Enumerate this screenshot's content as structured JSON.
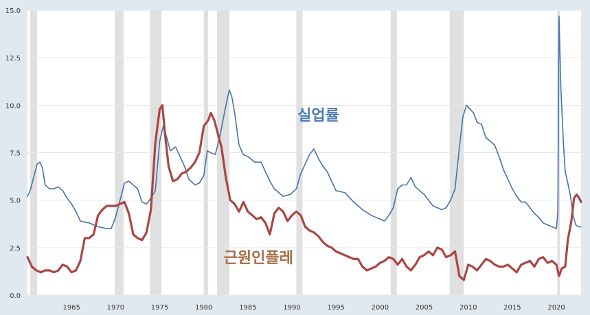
{
  "chart_data": {
    "type": "line",
    "title": "",
    "xlabel": "",
    "ylabel": "",
    "xlim": [
      1960.0,
      2022.8
    ],
    "ylim": [
      0,
      15
    ],
    "grid": true,
    "y_ticks": [
      {
        "value": 0,
        "label": "0.0"
      },
      {
        "value": 2.5,
        "label": "2.5"
      },
      {
        "value": 5,
        "label": "5.0"
      },
      {
        "value": 7.5,
        "label": "7.5"
      },
      {
        "value": 10,
        "label": "10.0"
      },
      {
        "value": 12.5,
        "label": "12.5"
      },
      {
        "value": 15,
        "label": "15.0"
      }
    ],
    "x_ticks": [
      {
        "value": 1965,
        "label": "1965"
      },
      {
        "value": 1970,
        "label": "1970"
      },
      {
        "value": 1975,
        "label": "1975"
      },
      {
        "value": 1980,
        "label": "1980"
      },
      {
        "value": 1985,
        "label": "1985"
      },
      {
        "value": 1990,
        "label": "1990"
      },
      {
        "value": 1995,
        "label": "1995"
      },
      {
        "value": 2000,
        "label": "2000"
      },
      {
        "value": 2005,
        "label": "2005"
      },
      {
        "value": 2010,
        "label": "2010"
      },
      {
        "value": 2015,
        "label": "2015"
      },
      {
        "value": 2020,
        "label": "2020"
      }
    ],
    "recessions": [
      [
        1960.3,
        1961.1
      ],
      [
        1969.9,
        1970.9
      ],
      [
        1973.9,
        1975.2
      ],
      [
        1980.0,
        1980.5
      ],
      [
        1981.5,
        1982.9
      ],
      [
        1990.5,
        1991.2
      ],
      [
        2001.2,
        2001.9
      ],
      [
        2007.9,
        2009.5
      ],
      [
        2020.1,
        2020.4
      ]
    ],
    "series": [
      {
        "name": "실업률",
        "color": "#4572a7",
        "label_at": {
          "x": 1993.0,
          "y": 9.2
        },
        "points": [
          [
            1960.0,
            5.2
          ],
          [
            1960.3,
            5.5
          ],
          [
            1960.7,
            6.2
          ],
          [
            1961.1,
            6.9
          ],
          [
            1961.4,
            7.0
          ],
          [
            1961.7,
            6.7
          ],
          [
            1962.0,
            5.8
          ],
          [
            1962.5,
            5.6
          ],
          [
            1963.0,
            5.6
          ],
          [
            1963.5,
            5.7
          ],
          [
            1964.0,
            5.5
          ],
          [
            1964.5,
            5.1
          ],
          [
            1965.0,
            4.8
          ],
          [
            1965.5,
            4.4
          ],
          [
            1966.0,
            3.9
          ],
          [
            1967.0,
            3.8
          ],
          [
            1968.0,
            3.6
          ],
          [
            1969.0,
            3.5
          ],
          [
            1969.5,
            3.5
          ],
          [
            1970.0,
            4.1
          ],
          [
            1970.5,
            5.0
          ],
          [
            1971.0,
            5.9
          ],
          [
            1971.5,
            6.0
          ],
          [
            1972.0,
            5.8
          ],
          [
            1972.5,
            5.6
          ],
          [
            1973.0,
            4.9
          ],
          [
            1973.5,
            4.8
          ],
          [
            1974.0,
            5.1
          ],
          [
            1974.5,
            5.5
          ],
          [
            1975.0,
            8.1
          ],
          [
            1975.4,
            8.9
          ],
          [
            1975.8,
            8.3
          ],
          [
            1976.2,
            7.6
          ],
          [
            1976.8,
            7.8
          ],
          [
            1977.2,
            7.4
          ],
          [
            1977.8,
            6.8
          ],
          [
            1978.3,
            6.1
          ],
          [
            1979.0,
            5.8
          ],
          [
            1979.5,
            5.9
          ],
          [
            1980.0,
            6.3
          ],
          [
            1980.4,
            7.6
          ],
          [
            1980.8,
            7.5
          ],
          [
            1981.3,
            7.4
          ],
          [
            1981.8,
            8.3
          ],
          [
            1982.3,
            9.5
          ],
          [
            1982.7,
            10.4
          ],
          [
            1982.9,
            10.8
          ],
          [
            1983.2,
            10.4
          ],
          [
            1983.5,
            9.6
          ],
          [
            1984.0,
            7.9
          ],
          [
            1984.5,
            7.4
          ],
          [
            1985.0,
            7.3
          ],
          [
            1985.8,
            7.0
          ],
          [
            1986.5,
            7.0
          ],
          [
            1987.0,
            6.5
          ],
          [
            1987.5,
            6.0
          ],
          [
            1988.0,
            5.6
          ],
          [
            1988.5,
            5.4
          ],
          [
            1989.0,
            5.2
          ],
          [
            1989.8,
            5.3
          ],
          [
            1990.5,
            5.6
          ],
          [
            1991.0,
            6.4
          ],
          [
            1991.5,
            6.9
          ],
          [
            1992.0,
            7.4
          ],
          [
            1992.5,
            7.7
          ],
          [
            1993.0,
            7.2
          ],
          [
            1993.5,
            6.8
          ],
          [
            1994.0,
            6.5
          ],
          [
            1994.5,
            6.0
          ],
          [
            1995.0,
            5.5
          ],
          [
            1996.0,
            5.4
          ],
          [
            1997.0,
            4.9
          ],
          [
            1998.0,
            4.5
          ],
          [
            1999.0,
            4.2
          ],
          [
            2000.0,
            4.0
          ],
          [
            2000.5,
            3.9
          ],
          [
            2001.0,
            4.2
          ],
          [
            2001.5,
            4.6
          ],
          [
            2002.0,
            5.6
          ],
          [
            2002.5,
            5.8
          ],
          [
            2003.0,
            5.8
          ],
          [
            2003.5,
            6.2
          ],
          [
            2004.0,
            5.7
          ],
          [
            2004.5,
            5.5
          ],
          [
            2005.0,
            5.3
          ],
          [
            2005.5,
            5.0
          ],
          [
            2006.0,
            4.7
          ],
          [
            2006.5,
            4.6
          ],
          [
            2007.0,
            4.5
          ],
          [
            2007.5,
            4.6
          ],
          [
            2008.0,
            5.0
          ],
          [
            2008.5,
            5.6
          ],
          [
            2009.0,
            7.8
          ],
          [
            2009.4,
            9.4
          ],
          [
            2009.8,
            10.0
          ],
          [
            2010.2,
            9.8
          ],
          [
            2010.6,
            9.6
          ],
          [
            2011.0,
            9.1
          ],
          [
            2011.5,
            9.0
          ],
          [
            2012.0,
            8.3
          ],
          [
            2012.5,
            8.1
          ],
          [
            2013.0,
            7.9
          ],
          [
            2013.5,
            7.3
          ],
          [
            2014.0,
            6.6
          ],
          [
            2014.5,
            6.1
          ],
          [
            2015.0,
            5.6
          ],
          [
            2015.5,
            5.2
          ],
          [
            2016.0,
            4.9
          ],
          [
            2016.5,
            4.9
          ],
          [
            2017.0,
            4.6
          ],
          [
            2017.5,
            4.3
          ],
          [
            2018.0,
            4.1
          ],
          [
            2018.5,
            3.8
          ],
          [
            2019.0,
            3.7
          ],
          [
            2019.5,
            3.6
          ],
          [
            2020.0,
            3.5
          ],
          [
            2020.17,
            4.4
          ],
          [
            2020.3,
            14.7
          ],
          [
            2020.5,
            11.0
          ],
          [
            2020.8,
            8.0
          ],
          [
            2021.0,
            6.5
          ],
          [
            2021.3,
            5.9
          ],
          [
            2021.6,
            5.2
          ],
          [
            2021.9,
            4.2
          ],
          [
            2022.2,
            3.7
          ],
          [
            2022.5,
            3.6
          ],
          [
            2022.8,
            3.6
          ]
        ]
      },
      {
        "name": "근원인플레",
        "color": "#aa4643",
        "label_at": {
          "x": 1986.2,
          "y": 1.7
        },
        "points": [
          [
            1960.0,
            2.0
          ],
          [
            1960.5,
            1.5
          ],
          [
            1961.0,
            1.3
          ],
          [
            1961.5,
            1.2
          ],
          [
            1962.0,
            1.3
          ],
          [
            1962.5,
            1.3
          ],
          [
            1963.0,
            1.2
          ],
          [
            1963.5,
            1.3
          ],
          [
            1964.0,
            1.6
          ],
          [
            1964.5,
            1.5
          ],
          [
            1965.0,
            1.2
          ],
          [
            1965.5,
            1.3
          ],
          [
            1966.0,
            1.8
          ],
          [
            1966.5,
            3.0
          ],
          [
            1967.0,
            3.0
          ],
          [
            1967.5,
            3.2
          ],
          [
            1968.0,
            4.2
          ],
          [
            1968.5,
            4.5
          ],
          [
            1969.0,
            4.7
          ],
          [
            1969.5,
            4.7
          ],
          [
            1970.0,
            4.7
          ],
          [
            1970.5,
            4.8
          ],
          [
            1971.0,
            4.9
          ],
          [
            1971.5,
            4.3
          ],
          [
            1972.0,
            3.2
          ],
          [
            1972.5,
            3.0
          ],
          [
            1973.0,
            2.9
          ],
          [
            1973.5,
            3.3
          ],
          [
            1974.0,
            4.5
          ],
          [
            1974.5,
            8.0
          ],
          [
            1975.0,
            9.8
          ],
          [
            1975.3,
            10.0
          ],
          [
            1975.6,
            8.5
          ],
          [
            1976.0,
            6.8
          ],
          [
            1976.5,
            6.0
          ],
          [
            1977.0,
            6.1
          ],
          [
            1977.5,
            6.4
          ],
          [
            1978.0,
            6.5
          ],
          [
            1978.5,
            6.7
          ],
          [
            1979.0,
            7.0
          ],
          [
            1979.5,
            7.5
          ],
          [
            1980.0,
            8.9
          ],
          [
            1980.5,
            9.2
          ],
          [
            1980.8,
            9.6
          ],
          [
            1981.2,
            9.2
          ],
          [
            1981.6,
            8.5
          ],
          [
            1982.0,
            7.8
          ],
          [
            1982.5,
            6.2
          ],
          [
            1983.0,
            5.0
          ],
          [
            1983.5,
            4.8
          ],
          [
            1984.0,
            4.4
          ],
          [
            1984.5,
            4.9
          ],
          [
            1985.0,
            4.4
          ],
          [
            1985.5,
            4.2
          ],
          [
            1986.0,
            4.0
          ],
          [
            1986.5,
            4.1
          ],
          [
            1987.0,
            3.8
          ],
          [
            1987.5,
            3.2
          ],
          [
            1988.0,
            4.3
          ],
          [
            1988.5,
            4.6
          ],
          [
            1989.0,
            4.4
          ],
          [
            1989.5,
            3.9
          ],
          [
            1990.0,
            4.2
          ],
          [
            1990.5,
            4.4
          ],
          [
            1991.0,
            4.2
          ],
          [
            1991.5,
            3.6
          ],
          [
            1992.0,
            3.4
          ],
          [
            1992.5,
            3.3
          ],
          [
            1993.0,
            3.1
          ],
          [
            1993.5,
            2.8
          ],
          [
            1994.0,
            2.6
          ],
          [
            1994.5,
            2.5
          ],
          [
            1995.0,
            2.3
          ],
          [
            1996.0,
            2.1
          ],
          [
            1997.0,
            1.9
          ],
          [
            1997.5,
            1.9
          ],
          [
            1998.0,
            1.5
          ],
          [
            1998.5,
            1.3
          ],
          [
            1999.0,
            1.4
          ],
          [
            1999.5,
            1.5
          ],
          [
            2000.0,
            1.7
          ],
          [
            2000.5,
            1.8
          ],
          [
            2001.0,
            2.0
          ],
          [
            2001.5,
            1.9
          ],
          [
            2002.0,
            1.6
          ],
          [
            2002.5,
            1.9
          ],
          [
            2003.0,
            1.5
          ],
          [
            2003.5,
            1.3
          ],
          [
            2004.0,
            1.6
          ],
          [
            2004.5,
            2.0
          ],
          [
            2005.0,
            2.1
          ],
          [
            2005.5,
            2.3
          ],
          [
            2006.0,
            2.1
          ],
          [
            2006.5,
            2.5
          ],
          [
            2007.0,
            2.4
          ],
          [
            2007.5,
            2.0
          ],
          [
            2008.0,
            2.1
          ],
          [
            2008.5,
            2.3
          ],
          [
            2009.0,
            1.0
          ],
          [
            2009.5,
            0.8
          ],
          [
            2010.0,
            1.6
          ],
          [
            2010.5,
            1.5
          ],
          [
            2011.0,
            1.3
          ],
          [
            2011.5,
            1.6
          ],
          [
            2012.0,
            1.9
          ],
          [
            2012.5,
            1.8
          ],
          [
            2013.0,
            1.6
          ],
          [
            2013.5,
            1.5
          ],
          [
            2014.0,
            1.5
          ],
          [
            2014.5,
            1.6
          ],
          [
            2015.0,
            1.4
          ],
          [
            2015.5,
            1.2
          ],
          [
            2016.0,
            1.6
          ],
          [
            2016.5,
            1.7
          ],
          [
            2017.0,
            1.8
          ],
          [
            2017.5,
            1.5
          ],
          [
            2018.0,
            1.9
          ],
          [
            2018.5,
            2.0
          ],
          [
            2019.0,
            1.7
          ],
          [
            2019.5,
            1.8
          ],
          [
            2020.0,
            1.6
          ],
          [
            2020.3,
            1.0
          ],
          [
            2020.6,
            1.4
          ],
          [
            2021.0,
            1.5
          ],
          [
            2021.3,
            2.9
          ],
          [
            2021.7,
            3.9
          ],
          [
            2022.0,
            5.1
          ],
          [
            2022.3,
            5.3
          ],
          [
            2022.6,
            5.1
          ],
          [
            2022.8,
            4.9
          ]
        ]
      }
    ]
  }
}
